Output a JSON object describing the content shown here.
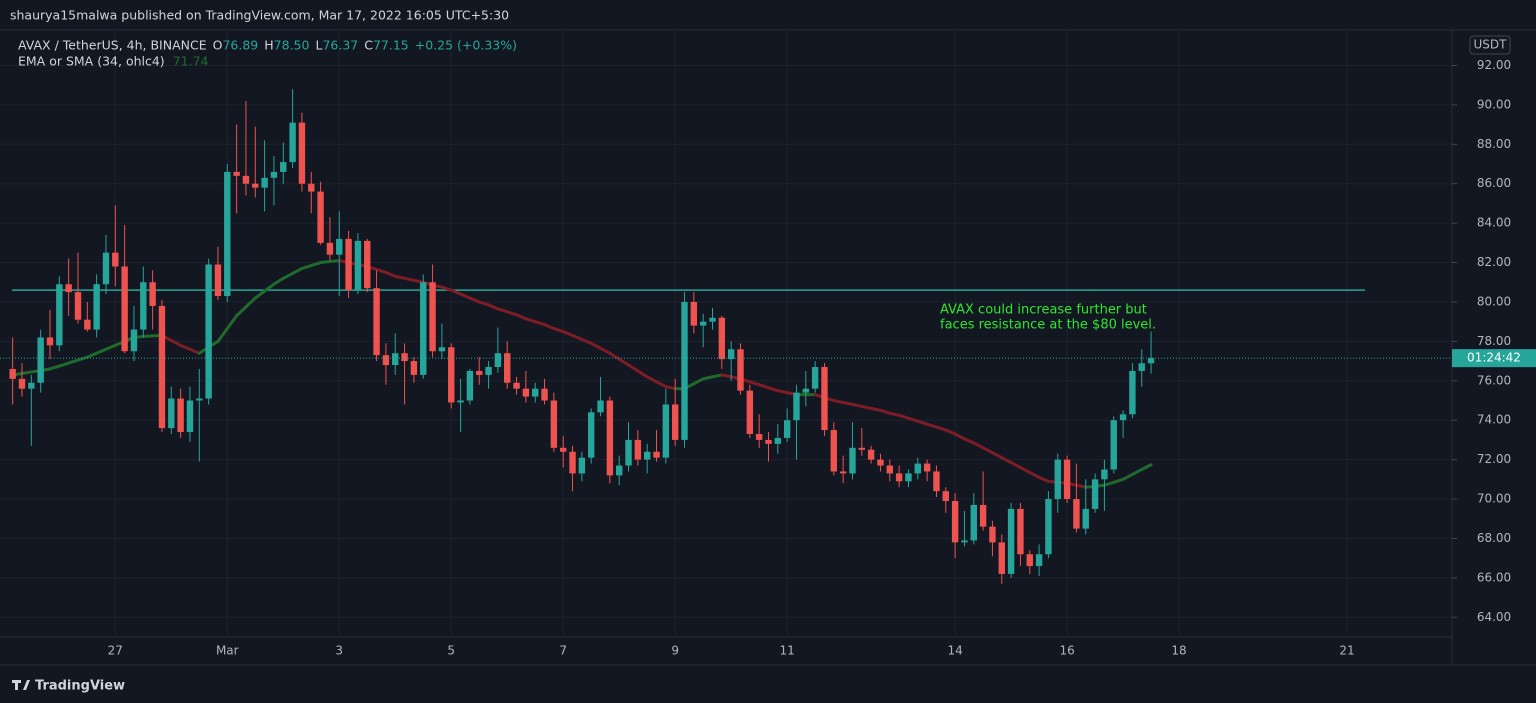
{
  "chart_data": {
    "type": "candlestick",
    "publisher_line": "shaurya15malwa published on TradingView.com, Mar 17, 2022 16:05 UTC+5:30",
    "symbol": "AVAX / TetherUS, 4h, BINANCE",
    "ohlc_legend": [
      {
        "key": "O",
        "value": "76.89"
      },
      {
        "key": "H",
        "value": "78.50"
      },
      {
        "key": "L",
        "value": "76.37"
      },
      {
        "key": "C",
        "value": "77.15"
      }
    ],
    "change": "+0.25 (+0.33%)",
    "currency": "USDT",
    "countdown": "01:24:42",
    "annotation": [
      "AVAX could increase further but",
      "faces resistance at the $80 level."
    ],
    "brand": "TradingView",
    "up_color": "#26a69a",
    "down_color": "#ef5350",
    "annotation_color": "#2ee62e",
    "grid": true,
    "resistance_line": {
      "value": 80.6,
      "color": "#26a69a"
    },
    "ylim": [
      63,
      93.8
    ],
    "yticks": [
      {
        "value": 64,
        "label": "64.00"
      },
      {
        "value": 66,
        "label": "66.00"
      },
      {
        "value": 68,
        "label": "68.00"
      },
      {
        "value": 70,
        "label": "70.00"
      },
      {
        "value": 72,
        "label": "72.00"
      },
      {
        "value": 74,
        "label": "74.00"
      },
      {
        "value": 76,
        "label": "76.00"
      },
      {
        "value": 78,
        "label": "78.00"
      },
      {
        "value": 80,
        "label": "80.00"
      },
      {
        "value": 82,
        "label": "82.00"
      },
      {
        "value": 84,
        "label": "84.00"
      },
      {
        "value": 86,
        "label": "86.00"
      },
      {
        "value": 88,
        "label": "88.00"
      },
      {
        "value": 90,
        "label": "90.00"
      },
      {
        "value": 92,
        "label": "92.00"
      }
    ],
    "categories": [
      null,
      null,
      null,
      null,
      null,
      null,
      null,
      null,
      null,
      null,
      null,
      "27",
      null,
      null,
      null,
      null,
      null,
      null,
      null,
      null,
      null,
      null,
      null,
      "Mar",
      null,
      null,
      null,
      null,
      null,
      null,
      null,
      null,
      null,
      null,
      null,
      "3",
      null,
      null,
      null,
      null,
      null,
      null,
      null,
      null,
      null,
      null,
      null,
      "5",
      null,
      null,
      null,
      null,
      null,
      null,
      null,
      null,
      null,
      null,
      null,
      "7",
      null,
      null,
      null,
      null,
      null,
      null,
      null,
      null,
      null,
      null,
      null,
      "9",
      null,
      null,
      null,
      null,
      null,
      null,
      null,
      null,
      null,
      null,
      null,
      "11",
      null,
      null,
      null,
      null,
      null,
      null,
      null,
      null,
      null,
      null,
      null,
      null,
      null,
      null,
      null,
      null,
      null,
      "14",
      null,
      null,
      null,
      null,
      null,
      null,
      null,
      null,
      null,
      null,
      null,
      "16",
      null,
      null,
      null,
      null,
      null,
      null,
      null,
      null,
      null,
      null,
      null,
      "18",
      null,
      null,
      null,
      null,
      null,
      null,
      null,
      null,
      null,
      null,
      null,
      null,
      null,
      null,
      null,
      null,
      null,
      "21",
      null,
      null,
      null,
      null,
      null,
      null,
      null,
      null,
      null,
      null
    ],
    "candles": [
      [
        76.6,
        78.2,
        74.8,
        76.1
      ],
      [
        76.1,
        76.9,
        75.2,
        75.6
      ],
      [
        75.6,
        76.3,
        72.7,
        75.9
      ],
      [
        75.9,
        78.6,
        75.4,
        78.2
      ],
      [
        78.2,
        79.6,
        77.1,
        77.8
      ],
      [
        77.8,
        81.3,
        77.5,
        80.9
      ],
      [
        80.9,
        82.2,
        79.3,
        80.5
      ],
      [
        80.5,
        82.5,
        78.9,
        79.1
      ],
      [
        79.1,
        80.0,
        78.5,
        78.6
      ],
      [
        78.6,
        81.4,
        78.2,
        80.9
      ],
      [
        80.9,
        83.4,
        80.4,
        82.5
      ],
      [
        82.5,
        84.9,
        80.8,
        81.8
      ],
      [
        81.8,
        83.9,
        77.4,
        77.5
      ],
      [
        77.5,
        79.8,
        77.0,
        78.6
      ],
      [
        78.6,
        81.8,
        78.2,
        81.0
      ],
      [
        81.0,
        81.6,
        78.6,
        79.8
      ],
      [
        79.8,
        80.1,
        73.4,
        73.6
      ],
      [
        73.6,
        75.7,
        73.3,
        75.1
      ],
      [
        75.1,
        75.6,
        73.1,
        73.4
      ],
      [
        73.4,
        75.7,
        72.9,
        75.0
      ],
      [
        75.0,
        76.6,
        71.9,
        75.1
      ],
      [
        75.1,
        82.2,
        74.8,
        81.9
      ],
      [
        81.9,
        82.8,
        80.1,
        80.3
      ],
      [
        80.3,
        87.0,
        80.0,
        86.6
      ],
      [
        86.6,
        89.0,
        84.5,
        86.4
      ],
      [
        86.4,
        90.2,
        85.4,
        86.0
      ],
      [
        86.0,
        88.9,
        85.3,
        85.8
      ],
      [
        85.8,
        88.2,
        84.6,
        86.3
      ],
      [
        86.3,
        87.4,
        84.9,
        86.6
      ],
      [
        86.6,
        88.1,
        86.0,
        87.1
      ],
      [
        87.1,
        90.8,
        86.8,
        89.1
      ],
      [
        89.1,
        89.6,
        85.6,
        86.0
      ],
      [
        86.0,
        86.6,
        84.5,
        85.6
      ],
      [
        85.6,
        86.1,
        82.9,
        83.0
      ],
      [
        83.0,
        84.3,
        82.1,
        82.4
      ],
      [
        82.4,
        84.6,
        80.3,
        83.2
      ],
      [
        83.2,
        83.6,
        80.2,
        80.6
      ],
      [
        80.6,
        83.5,
        80.4,
        83.1
      ],
      [
        83.1,
        83.2,
        80.5,
        80.7
      ],
      [
        80.7,
        81.6,
        77.0,
        77.3
      ],
      [
        77.3,
        77.9,
        75.8,
        76.8
      ],
      [
        76.8,
        78.4,
        76.3,
        77.4
      ],
      [
        77.4,
        77.9,
        74.8,
        77.0
      ],
      [
        77.0,
        77.2,
        75.9,
        76.3
      ],
      [
        76.3,
        81.4,
        76.1,
        81.0
      ],
      [
        81.0,
        81.9,
        77.2,
        77.5
      ],
      [
        77.5,
        78.9,
        77.1,
        77.7
      ],
      [
        77.7,
        77.9,
        74.6,
        74.9
      ],
      [
        74.9,
        76.1,
        73.4,
        75.0
      ],
      [
        75.0,
        76.6,
        74.8,
        76.5
      ],
      [
        76.5,
        77.2,
        75.8,
        76.3
      ],
      [
        76.3,
        77.0,
        75.6,
        76.7
      ],
      [
        76.7,
        78.7,
        76.4,
        77.4
      ],
      [
        77.4,
        78.0,
        75.6,
        75.9
      ],
      [
        75.9,
        76.2,
        75.3,
        75.6
      ],
      [
        75.6,
        76.5,
        74.9,
        75.2
      ],
      [
        75.2,
        75.9,
        74.9,
        75.6
      ],
      [
        75.6,
        76.1,
        74.8,
        75.0
      ],
      [
        75.0,
        75.4,
        72.4,
        72.6
      ],
      [
        72.6,
        73.2,
        71.6,
        72.4
      ],
      [
        72.4,
        72.7,
        70.4,
        71.3
      ],
      [
        71.3,
        72.4,
        70.9,
        72.1
      ],
      [
        72.1,
        74.6,
        71.8,
        74.4
      ],
      [
        74.4,
        76.2,
        74.2,
        75.0
      ],
      [
        75.0,
        75.2,
        70.8,
        71.2
      ],
      [
        71.2,
        72.2,
        70.7,
        71.7
      ],
      [
        71.7,
        73.9,
        71.4,
        73.0
      ],
      [
        73.0,
        73.5,
        71.7,
        72.0
      ],
      [
        72.0,
        72.8,
        71.3,
        72.4
      ],
      [
        72.4,
        73.5,
        71.9,
        72.1
      ],
      [
        72.1,
        75.6,
        71.8,
        74.8
      ],
      [
        74.8,
        76.1,
        72.7,
        73.0
      ],
      [
        73.0,
        80.5,
        72.6,
        80.0
      ],
      [
        80.0,
        80.5,
        78.4,
        78.8
      ],
      [
        78.8,
        79.4,
        77.7,
        79.0
      ],
      [
        79.0,
        79.7,
        78.6,
        79.2
      ],
      [
        79.2,
        79.3,
        76.6,
        77.1
      ],
      [
        77.1,
        78.0,
        76.0,
        77.6
      ],
      [
        77.6,
        77.9,
        75.3,
        75.5
      ],
      [
        75.5,
        75.8,
        73.1,
        73.3
      ],
      [
        73.3,
        74.3,
        72.6,
        73.0
      ],
      [
        73.0,
        73.4,
        71.9,
        72.8
      ],
      [
        72.8,
        73.8,
        72.3,
        73.1
      ],
      [
        73.1,
        74.6,
        72.9,
        74.0
      ],
      [
        74.0,
        75.8,
        72.0,
        75.4
      ],
      [
        75.4,
        76.5,
        74.7,
        75.6
      ],
      [
        75.6,
        77.0,
        75.4,
        76.7
      ],
      [
        76.7,
        76.9,
        73.2,
        73.5
      ],
      [
        73.5,
        73.9,
        71.2,
        71.4
      ],
      [
        71.4,
        72.2,
        70.8,
        71.3
      ],
      [
        71.3,
        73.9,
        71.0,
        72.6
      ],
      [
        72.6,
        73.6,
        72.2,
        72.5
      ],
      [
        72.5,
        72.7,
        71.8,
        72.0
      ],
      [
        72.0,
        72.3,
        71.4,
        71.7
      ],
      [
        71.7,
        72.0,
        70.9,
        71.3
      ],
      [
        71.3,
        71.7,
        70.6,
        70.9
      ],
      [
        70.9,
        71.5,
        70.6,
        71.3
      ],
      [
        71.3,
        72.1,
        71.0,
        71.8
      ],
      [
        71.8,
        72.0,
        70.9,
        71.4
      ],
      [
        71.4,
        71.7,
        70.1,
        70.4
      ],
      [
        70.4,
        70.6,
        69.3,
        69.9
      ],
      [
        69.9,
        70.3,
        67.0,
        67.8
      ],
      [
        67.8,
        69.4,
        67.6,
        67.9
      ],
      [
        67.9,
        70.3,
        67.7,
        69.7
      ],
      [
        69.7,
        71.4,
        68.4,
        68.6
      ],
      [
        68.6,
        68.9,
        67.1,
        67.8
      ],
      [
        67.8,
        68.2,
        65.7,
        66.2
      ],
      [
        66.2,
        69.8,
        66.0,
        69.5
      ],
      [
        69.5,
        69.8,
        66.6,
        67.2
      ],
      [
        67.2,
        67.4,
        66.2,
        66.6
      ],
      [
        66.6,
        67.7,
        66.1,
        67.2
      ],
      [
        67.2,
        70.4,
        67.0,
        70.0
      ],
      [
        70.0,
        72.3,
        69.3,
        72.0
      ],
      [
        72.0,
        72.2,
        69.8,
        70.0
      ],
      [
        70.0,
        71.8,
        68.3,
        68.5
      ],
      [
        68.5,
        71.0,
        68.2,
        69.5
      ],
      [
        69.5,
        71.3,
        69.3,
        71.0
      ],
      [
        71.0,
        72.0,
        69.4,
        71.5
      ],
      [
        71.5,
        74.2,
        71.3,
        74.0
      ],
      [
        74.0,
        74.5,
        73.1,
        74.3
      ],
      [
        74.3,
        76.9,
        74.1,
        76.5
      ],
      [
        76.5,
        77.6,
        75.7,
        76.89
      ],
      [
        76.89,
        78.5,
        76.37,
        77.15
      ],
      null,
      null,
      null,
      null,
      null,
      null,
      null,
      null,
      null,
      null,
      null,
      null,
      null,
      null,
      null,
      null,
      null,
      null,
      null,
      null,
      null,
      null,
      null,
      null,
      null,
      null,
      null,
      null,
      null,
      null,
      null
    ],
    "ema": {
      "name": "EMA or SMA (34, ohlc4)",
      "last_label": "71.74",
      "up_color": "#1f6b2c",
      "down_color": "#7e1d26",
      "values": [
        76.3,
        76.37,
        76.45,
        76.52,
        76.6,
        76.75,
        76.9,
        77.05,
        77.2,
        77.4,
        77.6,
        77.8,
        78.0,
        78.2,
        78.25,
        78.28,
        78.3,
        78.05,
        77.8,
        77.6,
        77.4,
        77.7,
        78.0,
        78.65,
        79.3,
        79.75,
        80.2,
        80.55,
        80.9,
        81.2,
        81.45,
        81.7,
        81.85,
        82.0,
        82.05,
        82.1,
        82.0,
        81.9,
        81.8,
        81.65,
        81.5,
        81.3,
        81.2,
        81.1,
        81.0,
        80.85,
        80.75,
        80.6,
        80.4,
        80.2,
        80.0,
        79.85,
        79.65,
        79.5,
        79.35,
        79.15,
        79.0,
        78.85,
        78.65,
        78.5,
        78.3,
        78.1,
        77.9,
        77.65,
        77.4,
        77.1,
        76.8,
        76.5,
        76.2,
        75.95,
        75.7,
        75.6,
        75.6,
        75.85,
        76.1,
        76.2,
        76.3,
        76.2,
        76.1,
        75.95,
        75.8,
        75.65,
        75.5,
        75.4,
        75.3,
        75.3,
        75.3,
        75.15,
        75.0,
        74.9,
        74.8,
        74.7,
        74.6,
        74.5,
        74.35,
        74.25,
        74.1,
        73.95,
        73.8,
        73.65,
        73.5,
        73.3,
        73.05,
        72.85,
        72.6,
        72.35,
        72.1,
        71.85,
        71.6,
        71.35,
        71.1,
        70.9,
        70.85,
        70.8,
        70.7,
        70.6,
        70.65,
        70.7,
        70.85,
        71.0,
        71.25,
        71.5,
        71.74,
        null,
        null,
        null,
        null,
        null,
        null,
        null,
        null,
        null,
        null,
        null,
        null,
        null,
        null,
        null,
        null,
        null,
        null,
        null,
        null,
        null,
        null,
        null,
        null,
        null,
        null,
        null,
        null,
        null,
        null,
        null
      ]
    }
  }
}
